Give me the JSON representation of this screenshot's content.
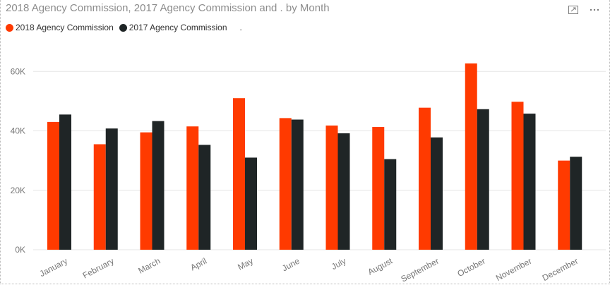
{
  "title": "2018 Agency Commission, 2017 Agency Commission and . by Month",
  "header_icons": [
    "focus-mode-icon",
    "more-options-icon"
  ],
  "legend": [
    {
      "name": "2018 Agency Commission",
      "color": "#FF3A00"
    },
    {
      "name": "2017 Agency Commission",
      "color": "#1F2526"
    },
    {
      "name": ".",
      "color": ""
    }
  ],
  "chart_data": {
    "type": "bar",
    "title": "2018 Agency Commission, 2017 Agency Commission and . by Month",
    "xlabel": "",
    "ylabel": "",
    "categories": [
      "January",
      "February",
      "March",
      "April",
      "May",
      "June",
      "July",
      "August",
      "September",
      "October",
      "November",
      "December"
    ],
    "series": [
      {
        "name": "2018 Agency Commission",
        "color": "#FF3A00",
        "values": [
          43000,
          35500,
          39500,
          41500,
          51000,
          44300,
          41800,
          41300,
          47800,
          62700,
          49800,
          30000
        ]
      },
      {
        "name": "2017 Agency Commission",
        "color": "#1F2526",
        "values": [
          45500,
          40800,
          43300,
          35300,
          31000,
          43800,
          39200,
          30500,
          37800,
          47300,
          45800,
          31300
        ]
      }
    ],
    "ylim": [
      0,
      66000
    ],
    "yticks": [
      0,
      20000,
      40000,
      60000
    ],
    "ytick_labels": [
      "0K",
      "20K",
      "40K",
      "60K"
    ],
    "grid": true,
    "legend_position": "top-left"
  }
}
